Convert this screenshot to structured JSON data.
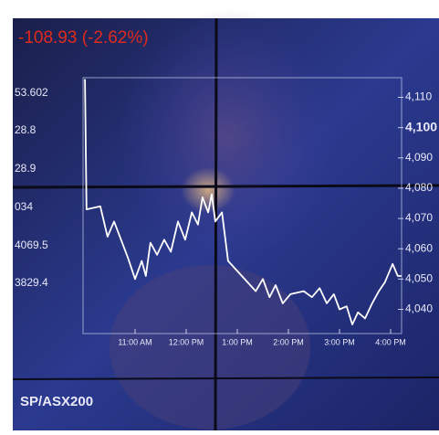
{
  "screen": {
    "change": "-108.93 (-2.62%)",
    "left_labels": [
      "53.602",
      "28.8",
      "28.9",
      "034",
      "4069.5",
      "3829.4"
    ],
    "index_name": "SP/ASX200"
  },
  "chart_data": {
    "type": "line",
    "x": [
      10.02,
      10.05,
      10.32,
      10.46,
      10.59,
      10.86,
      11.0,
      11.13,
      11.21,
      11.3,
      11.43,
      11.57,
      11.7,
      11.84,
      11.98,
      12.11,
      12.23,
      12.32,
      12.43,
      12.5,
      12.57,
      12.7,
      12.82,
      13.09,
      13.36,
      13.5,
      13.63,
      13.75,
      13.89,
      14.04,
      14.3,
      14.46,
      14.61,
      14.75,
      14.89,
      15.0,
      15.14,
      15.25,
      15.36,
      15.5,
      15.64,
      15.77,
      15.89,
      16.04,
      16.14,
      16.21
    ],
    "values": [
      4116,
      4073,
      4074,
      4064,
      4069,
      4057,
      4050,
      4056,
      4051,
      4062,
      4058,
      4063,
      4059,
      4069,
      4063,
      4072,
      4068,
      4077,
      4072,
      4078,
      4069,
      4072,
      4056,
      4051,
      4046,
      4050,
      4044,
      4048,
      4042,
      4045,
      4046,
      4044,
      4047,
      4042,
      4045,
      4040,
      4041,
      4035,
      4039,
      4037,
      4042,
      4046,
      4049,
      4055,
      4051,
      4051
    ],
    "color": "#ffffff",
    "xlim": [
      10,
      16.25
    ],
    "xticks": [
      {
        "value": 11,
        "label": "11:00 AM"
      },
      {
        "value": 12,
        "label": "12:00 PM"
      },
      {
        "value": 13,
        "label": "1:00 PM"
      },
      {
        "value": 14,
        "label": "2:00 PM"
      },
      {
        "value": 15,
        "label": "3:00 PM"
      },
      {
        "value": 16,
        "label": "4:00 PM"
      }
    ],
    "ylim": [
      4032,
      4118
    ],
    "yticks": [
      {
        "value": 4110,
        "label": "4,110"
      },
      {
        "value": 4100,
        "label": "4,100"
      },
      {
        "value": 4090,
        "label": "4,090"
      },
      {
        "value": 4080,
        "label": "4,080"
      },
      {
        "value": 4070,
        "label": "4,070"
      },
      {
        "value": 4060,
        "label": "4,060"
      },
      {
        "value": 4050,
        "label": "4,050"
      },
      {
        "value": 4040,
        "label": "4,040"
      }
    ]
  }
}
